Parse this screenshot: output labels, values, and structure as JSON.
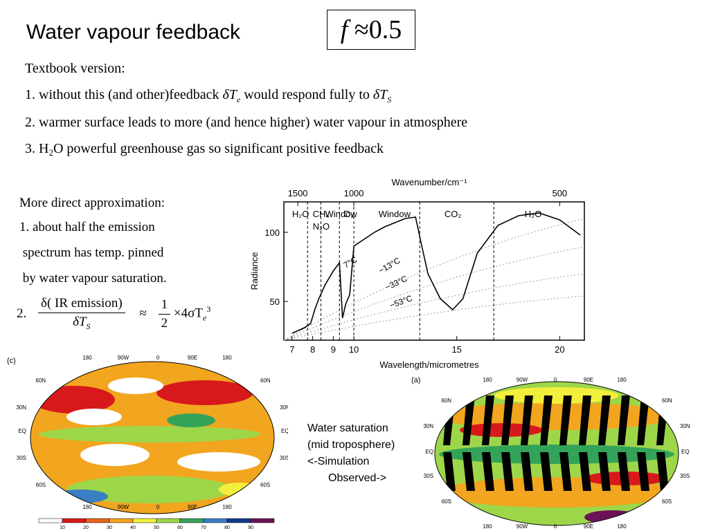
{
  "title": "Water vapour feedback",
  "formula_box": {
    "lhs": "f",
    "op": "≈",
    "rhs": "0.5"
  },
  "textbook": {
    "heading": "Textbook version:",
    "line1": {
      "a": "1. without this (and other)feedback ",
      "sym1": "δT",
      "sub1": "e",
      "b": " would respond fully to ",
      "sym2": "δT",
      "sub2": "S"
    },
    "line2": "2. warmer surface leads to more (and hence higher) water vapour in atmosphere",
    "line3": {
      "a": "3. H",
      "sub": "2",
      "b": "O powerful greenhouse gas so significant positive feedback"
    }
  },
  "direct": {
    "heading": "More direct approximation:",
    "item1": [
      "1. about half the emission",
      " spectrum has temp. pinned",
      " by water vapour saturation."
    ],
    "equation": {
      "label": "2.",
      "num": "δ( IR emission)",
      "den_sym": "δT",
      "den_sub": "S",
      "approx": "≈",
      "half_num": "1",
      "half_den": "2",
      "rhs": "×4σT",
      "rhs_sub": "e",
      "rhs_sup": "3"
    }
  },
  "chart_data": {
    "type": "line",
    "xlabel": "Wavelength/micrometres",
    "ylabel": "Radiance",
    "top_axis_label": "Wavenumber/cm⁻¹",
    "x_ticks": [
      "7",
      "8",
      "9",
      "10",
      "15",
      "20"
    ],
    "top_ticks": [
      "1500",
      "1000",
      "500"
    ],
    "y_ticks": [
      "50",
      "100"
    ],
    "band_labels": [
      "H₂O",
      "CH₄",
      "N₂O",
      "Window",
      "O₃",
      "Window",
      "CO₂",
      "H₂O"
    ],
    "curve_labels": [
      "7°C",
      "−13°C",
      "−33°C",
      "−53°C"
    ],
    "series": [
      {
        "x": [
          7.0,
          7.3,
          7.6,
          7.9,
          8.1,
          8.3,
          8.6,
          9.0,
          9.3,
          9.45,
          9.6,
          9.8,
          10.0,
          10.5,
          11.0,
          11.5,
          12.0,
          12.5,
          13.0,
          13.3,
          13.6,
          14.2,
          14.8,
          15.3,
          16.0,
          17.0,
          18.0,
          19.0,
          20.0,
          21.0
        ],
        "y": [
          27,
          29,
          31,
          34,
          44,
          52,
          62,
          72,
          78,
          38,
          48,
          55,
          90,
          95,
          100,
          104,
          107,
          110,
          111,
          90,
          70,
          52,
          44,
          52,
          85,
          105,
          112,
          114,
          109,
          98
        ]
      }
    ]
  },
  "map_left": {
    "panel_label": "(c)",
    "top_lon": [
      "180",
      "90W",
      "0",
      "90E",
      "180"
    ],
    "bottom_lon": [
      "180",
      "90W",
      "0",
      "90E",
      "180"
    ],
    "left_lat": [
      "60N",
      "30N",
      "EQ",
      "30S",
      "60S"
    ],
    "right_lat": [
      "60N",
      "30N",
      "EQ",
      "30S",
      "60S"
    ],
    "legend_values": [
      "10",
      "20",
      "30",
      "40",
      "50",
      "60",
      "70",
      "80",
      "90"
    ],
    "legend_colors": [
      "#ffffff",
      "#d7191c",
      "#e8641e",
      "#f2a51e",
      "#f2ef3c",
      "#9ed64a",
      "#33a35a",
      "#3a7fc3",
      "#123a8c",
      "#6b1357"
    ]
  },
  "map_right": {
    "panel_label": "(a)",
    "top_lon": [
      "180",
      "90W",
      "0",
      "90E",
      "180"
    ],
    "bottom_lon": [
      "180",
      "90W",
      "0",
      "90E",
      "180"
    ],
    "left_lat": [
      "60N",
      "30N",
      "EQ",
      "30S",
      "60S"
    ],
    "right_lat": [
      "60N",
      "30N",
      "EQ",
      "30S",
      "60S"
    ]
  },
  "caption": [
    "Water saturation",
    "(mid troposphere)",
    "<-Simulation",
    "Observed->"
  ]
}
